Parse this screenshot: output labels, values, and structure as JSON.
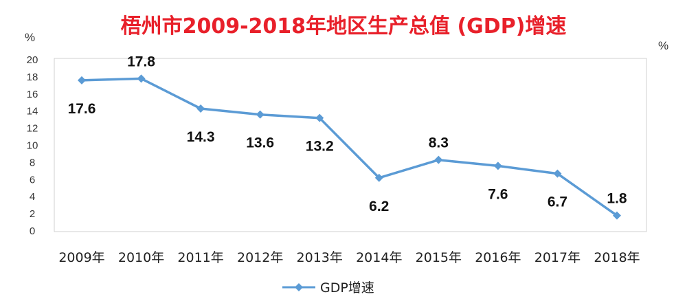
{
  "chart_data": {
    "type": "line",
    "title": "梧州市2009-2018年地区生产总值 (GDP)增速",
    "ylabel_left": "%",
    "ylabel_right": "%",
    "categories": [
      "2009年",
      "2010年",
      "2011年",
      "2012年",
      "2013年",
      "2014年",
      "2015年",
      "2016年",
      "2017年",
      "2018年"
    ],
    "series": [
      {
        "name": "GDP增速",
        "values": [
          17.6,
          17.8,
          14.3,
          13.6,
          13.2,
          6.2,
          8.3,
          7.6,
          6.7,
          1.8
        ],
        "labels": [
          "17.6",
          "17.8",
          "14.3",
          "13.6",
          "13.2",
          "6.2",
          "8.3",
          "7.6",
          "6.7",
          "1.8"
        ],
        "color": "#5b9bd5"
      }
    ],
    "ylim": [
      0,
      20
    ],
    "yticks": [
      "0",
      "2",
      "4",
      "6",
      "8",
      "10",
      "12",
      "14",
      "16",
      "18",
      "20"
    ],
    "grid": false,
    "legend_position": "bottom"
  }
}
